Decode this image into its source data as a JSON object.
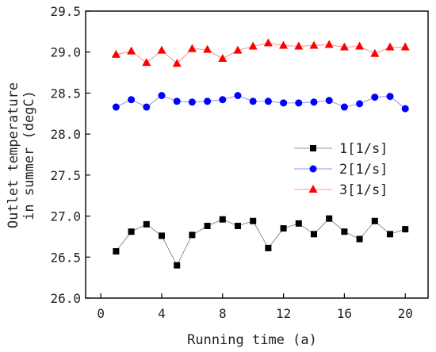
{
  "chart_data": {
    "type": "line",
    "xlabel": "Running time (a)",
    "ylabel_lines": [
      "Outlet temperature",
      "in summer (degC)"
    ],
    "xlim": [
      -1,
      21.5
    ],
    "ylim": [
      26.0,
      29.5
    ],
    "xticks": [
      0,
      4,
      8,
      12,
      16,
      20
    ],
    "xtick_labels": [
      "0",
      "4",
      "8",
      "12",
      "16",
      "20"
    ],
    "yticks": [
      26.0,
      26.5,
      27.0,
      27.5,
      28.0,
      28.5,
      29.0,
      29.5
    ],
    "ytick_labels": [
      "26.0",
      "26.5",
      "27.0",
      "27.5",
      "28.0",
      "28.5",
      "29.0",
      "29.5"
    ],
    "legend_position": "right",
    "grid": false,
    "x": [
      1,
      2,
      3,
      4,
      5,
      6,
      7,
      8,
      9,
      10,
      11,
      12,
      13,
      14,
      15,
      16,
      17,
      18,
      19,
      20
    ],
    "series": [
      {
        "name": "1[1/s]",
        "color": "#000000",
        "marker": "square",
        "values": [
          26.57,
          26.81,
          26.9,
          26.76,
          26.4,
          26.77,
          26.88,
          26.96,
          26.88,
          26.94,
          26.61,
          26.85,
          26.91,
          26.78,
          26.97,
          26.81,
          26.72,
          26.94,
          26.78,
          26.84
        ]
      },
      {
        "name": "2[1/s]",
        "color": "#0000ff",
        "marker": "circle",
        "values": [
          28.33,
          28.42,
          28.33,
          28.47,
          28.4,
          28.39,
          28.4,
          28.42,
          28.47,
          28.4,
          28.4,
          28.38,
          28.38,
          28.39,
          28.41,
          28.33,
          28.37,
          28.45,
          28.46,
          28.31
        ]
      },
      {
        "name": "3[1/s]",
        "color": "#ff0000",
        "marker": "triangle",
        "values": [
          28.97,
          29.01,
          28.87,
          29.02,
          28.86,
          29.04,
          29.03,
          28.92,
          29.02,
          29.07,
          29.11,
          29.08,
          29.07,
          29.08,
          29.09,
          29.06,
          29.07,
          28.98,
          29.06,
          29.06
        ]
      }
    ]
  }
}
